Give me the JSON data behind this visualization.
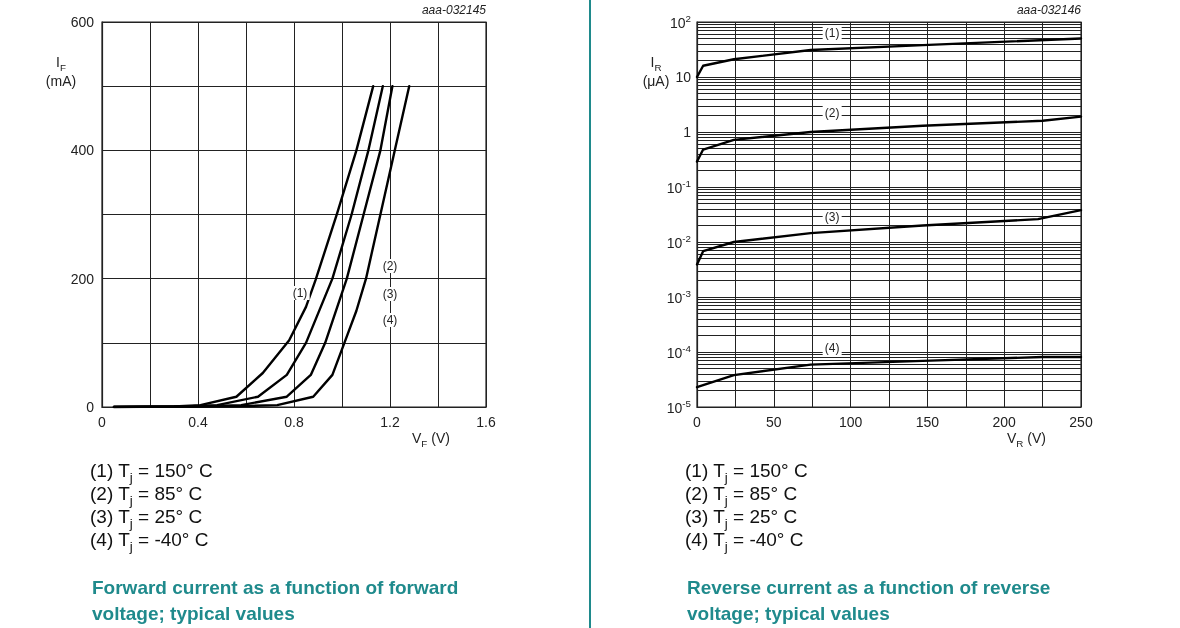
{
  "chart_data": [
    {
      "type": "line",
      "title": "Forward current as a function of forward voltage; typical values",
      "xlabel": "V$_{F}$ (V)",
      "ylabel": "I$_{F}$ (mA)",
      "xlim": [
        0,
        1.6
      ],
      "xticks": [
        0,
        {
          "value": 0.2,
          "label": null
        },
        0.4,
        {
          "value": 0.6,
          "label": null
        },
        0.8,
        {
          "value": 1.0,
          "label": null
        },
        1.2,
        {
          "value": 1.4,
          "label": null
        },
        1.6
      ],
      "ylim": [
        0,
        600
      ],
      "yticks": [
        0,
        {
          "value": 100,
          "label": null
        },
        200,
        {
          "value": 300,
          "label": null
        },
        400,
        {
          "value": 500,
          "label": null
        },
        600
      ],
      "grid": true,
      "marker": "none",
      "line_style": "solid",
      "series": [
        {
          "color": "#000000",
          "x": [
            0.05,
            0.3,
            0.41,
            0.56,
            0.67,
            0.78,
            0.85,
            0.89,
            0.98,
            1.06,
            1.13
          ],
          "values": [
            0,
            1,
            3,
            16,
            53,
            104,
            156,
            198,
            302,
            400,
            500
          ]
        },
        {
          "color": "#000000",
          "x": [
            0.05,
            0.35,
            0.48,
            0.65,
            0.77,
            0.85,
            0.96,
            1.04,
            1.11,
            1.17
          ],
          "values": [
            0,
            1,
            3,
            16,
            50,
            100,
            200,
            300,
            400,
            500
          ]
        },
        {
          "color": "#000000",
          "x": [
            0.05,
            0.4,
            0.58,
            0.77,
            0.87,
            0.93,
            1.02,
            1.09,
            1.16,
            1.21
          ],
          "values": [
            0,
            1,
            3,
            16,
            50,
            100,
            200,
            300,
            400,
            500
          ]
        },
        {
          "color": "#000000",
          "x": [
            0.05,
            0.55,
            0.73,
            0.88,
            0.96,
            1.01,
            1.06,
            1.1,
            1.16,
            1.22,
            1.28
          ],
          "values": [
            0,
            1,
            3,
            16,
            50,
            100,
            150,
            200,
            300,
            400,
            500
          ]
        }
      ],
      "annotations": [
        "aaa-032145",
        "(1) T$_{j}$ = 150° C",
        "(2) T$_{j}$ = 85° C",
        "(3) T$_{j}$ = 25° C",
        "(4) T$_{j}$ = -40° C",
        {
          "text": "(1)",
          "x": 0.825,
          "y": 178
        },
        {
          "text": "(2)",
          "x": 1.2,
          "y": 219
        },
        {
          "text": "(3)",
          "x": 1.2,
          "y": 176
        },
        {
          "text": "(4)",
          "x": 1.2,
          "y": 135
        }
      ]
    },
    {
      "type": "line",
      "title": "Reverse current as a function of reverse voltage; typical values",
      "xlabel": "V$_{R}$ (V)",
      "ylabel": "I$_{R}$ (μA)",
      "log": "y",
      "xlim": [
        0,
        250
      ],
      "xticks": [
        0,
        {
          "value": 25,
          "label": null
        },
        50,
        {
          "value": 75,
          "label": null
        },
        100,
        {
          "value": 125,
          "label": null
        },
        150,
        {
          "value": 175,
          "label": null
        },
        200,
        {
          "value": 225,
          "label": null
        },
        250
      ],
      "ylim": [
        1e-05,
        100
      ],
      "yticks": [
        {
          "value": 1e-05,
          "label": "10$^{-5}$"
        },
        {
          "value": 2e-05,
          "label": null
        },
        {
          "value": 3e-05,
          "label": null
        },
        {
          "value": 4e-05,
          "label": null
        },
        {
          "value": 5e-05,
          "label": null
        },
        {
          "value": 6e-05,
          "label": null
        },
        {
          "value": 7e-05,
          "label": null
        },
        {
          "value": 8e-05,
          "label": null
        },
        {
          "value": 9e-05,
          "label": null
        },
        {
          "value": 0.0001,
          "label": "10$^{-4}$"
        },
        {
          "value": 0.0002,
          "label": null
        },
        {
          "value": 0.0003,
          "label": null
        },
        {
          "value": 0.0004,
          "label": null
        },
        {
          "value": 0.0005,
          "label": null
        },
        {
          "value": 0.0006,
          "label": null
        },
        {
          "value": 0.0007,
          "label": null
        },
        {
          "value": 0.0008,
          "label": null
        },
        {
          "value": 0.0009,
          "label": null
        },
        {
          "value": 0.001,
          "label": "10$^{-3}$"
        },
        {
          "value": 0.002,
          "label": null
        },
        {
          "value": 0.003,
          "label": null
        },
        {
          "value": 0.004,
          "label": null
        },
        {
          "value": 0.005,
          "label": null
        },
        {
          "value": 0.006,
          "label": null
        },
        {
          "value": 0.007,
          "label": null
        },
        {
          "value": 0.008,
          "label": null
        },
        {
          "value": 0.009,
          "label": null
        },
        {
          "value": 0.01,
          "label": "10$^{-2}$"
        },
        {
          "value": 0.02,
          "label": null
        },
        {
          "value": 0.03,
          "label": null
        },
        {
          "value": 0.04,
          "label": null
        },
        {
          "value": 0.05,
          "label": null
        },
        {
          "value": 0.06,
          "label": null
        },
        {
          "value": 0.07,
          "label": null
        },
        {
          "value": 0.08,
          "label": null
        },
        {
          "value": 0.09,
          "label": null
        },
        {
          "value": 0.1,
          "label": "10$^{-1}$"
        },
        {
          "value": 0.2,
          "label": null
        },
        {
          "value": 0.3,
          "label": null
        },
        {
          "value": 0.4,
          "label": null
        },
        {
          "value": 0.5,
          "label": null
        },
        {
          "value": 0.6,
          "label": null
        },
        {
          "value": 0.7,
          "label": null
        },
        {
          "value": 0.8,
          "label": null
        },
        {
          "value": 0.9,
          "label": null
        },
        1,
        {
          "value": 2,
          "label": null
        },
        {
          "value": 3,
          "label": null
        },
        {
          "value": 4,
          "label": null
        },
        {
          "value": 5,
          "label": null
        },
        {
          "value": 6,
          "label": null
        },
        {
          "value": 7,
          "label": null
        },
        {
          "value": 8,
          "label": null
        },
        {
          "value": 9,
          "label": null
        },
        10,
        {
          "value": 20,
          "label": null
        },
        {
          "value": 30,
          "label": null
        },
        {
          "value": 40,
          "label": null
        },
        {
          "value": 50,
          "label": null
        },
        {
          "value": 60,
          "label": null
        },
        {
          "value": 70,
          "label": null
        },
        {
          "value": 80,
          "label": null
        },
        {
          "value": 90,
          "label": null
        },
        {
          "value": 100,
          "label": "10$^{2}$"
        }
      ],
      "grid": true,
      "marker": "none",
      "line_style": "solid",
      "series": [
        {
          "color": "#000000",
          "x": [
            0,
            4,
            24,
            74,
            147,
            250
          ],
          "values": [
            10,
            16,
            21,
            31,
            38,
            50
          ]
        },
        {
          "color": "#000000",
          "x": [
            0,
            4,
            24,
            74,
            147,
            225,
            250
          ],
          "values": [
            0.29,
            0.48,
            0.72,
            1.0,
            1.3,
            1.6,
            1.9
          ]
        },
        {
          "color": "#000000",
          "x": [
            0,
            4,
            24,
            74,
            147,
            222,
            250
          ],
          "values": [
            0.0039,
            0.0068,
            0.01,
            0.0145,
            0.02,
            0.026,
            0.038
          ]
        },
        {
          "color": "#000000",
          "x": [
            0,
            24,
            74,
            147,
            225,
            250
          ],
          "values": [
            2.3e-05,
            3.8e-05,
            5.9e-05,
            6.9e-05,
            8.1e-05,
            8.1e-05
          ]
        }
      ],
      "annotations": [
        "aaa-032146",
        "(1) T$_{j}$ = 150° C",
        "(2) T$_{j}$ = 85° C",
        "(3) T$_{j}$ = 25° C",
        "(4) T$_{j}$ = -40° C",
        {
          "text": "(1)",
          "x": 88,
          "y": 62
        },
        {
          "text": "(2)",
          "x": 88,
          "y": 2.2
        },
        {
          "text": "(3)",
          "x": 88,
          "y": 0.028
        },
        {
          "text": "(4)",
          "x": 88,
          "y": 0.00012
        }
      ]
    }
  ]
}
